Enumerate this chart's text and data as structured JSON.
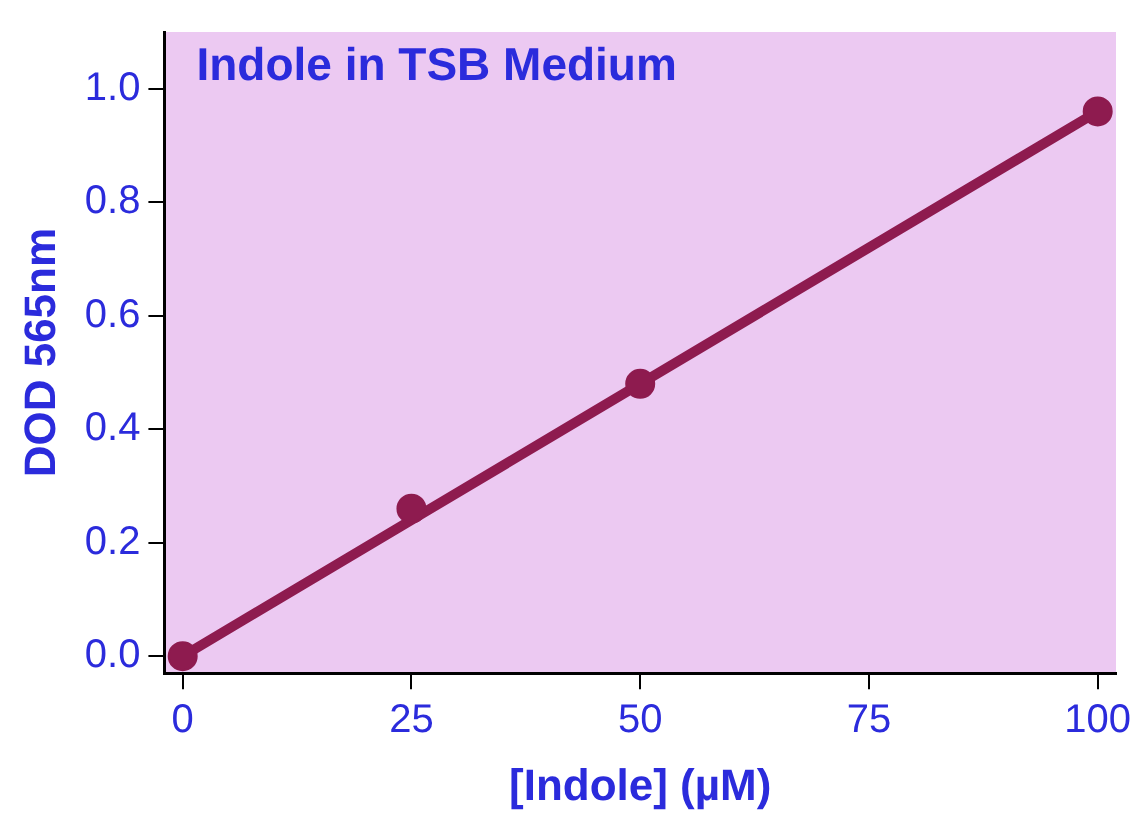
{
  "chart_data": {
    "type": "scatter",
    "title": "Indole in TSB Medium",
    "xlabel": "[Indole] (µM)",
    "ylabel": "DOD 565nm",
    "x": [
      0,
      25,
      50,
      100
    ],
    "series": [
      {
        "color": "#8e1b4f",
        "marker": "circle",
        "values": [
          0,
          0.26,
          0.48,
          0.96
        ]
      },
      {
        "type": "line",
        "color": "#8e1b4f",
        "marker": "none",
        "x": [
          0,
          100
        ],
        "values": [
          0,
          0.96
        ]
      }
    ],
    "xlim": [
      -2,
      102
    ],
    "ylim": [
      -0.03,
      1.1
    ],
    "xticks": [
      0,
      25,
      50,
      75,
      100
    ],
    "yticks": [
      {
        "value": 0,
        "label": "0.0"
      },
      0.2,
      0.4,
      0.6,
      0.8,
      {
        "value": 1,
        "label": "1.0"
      }
    ],
    "grid": false,
    "legend": false
  }
}
